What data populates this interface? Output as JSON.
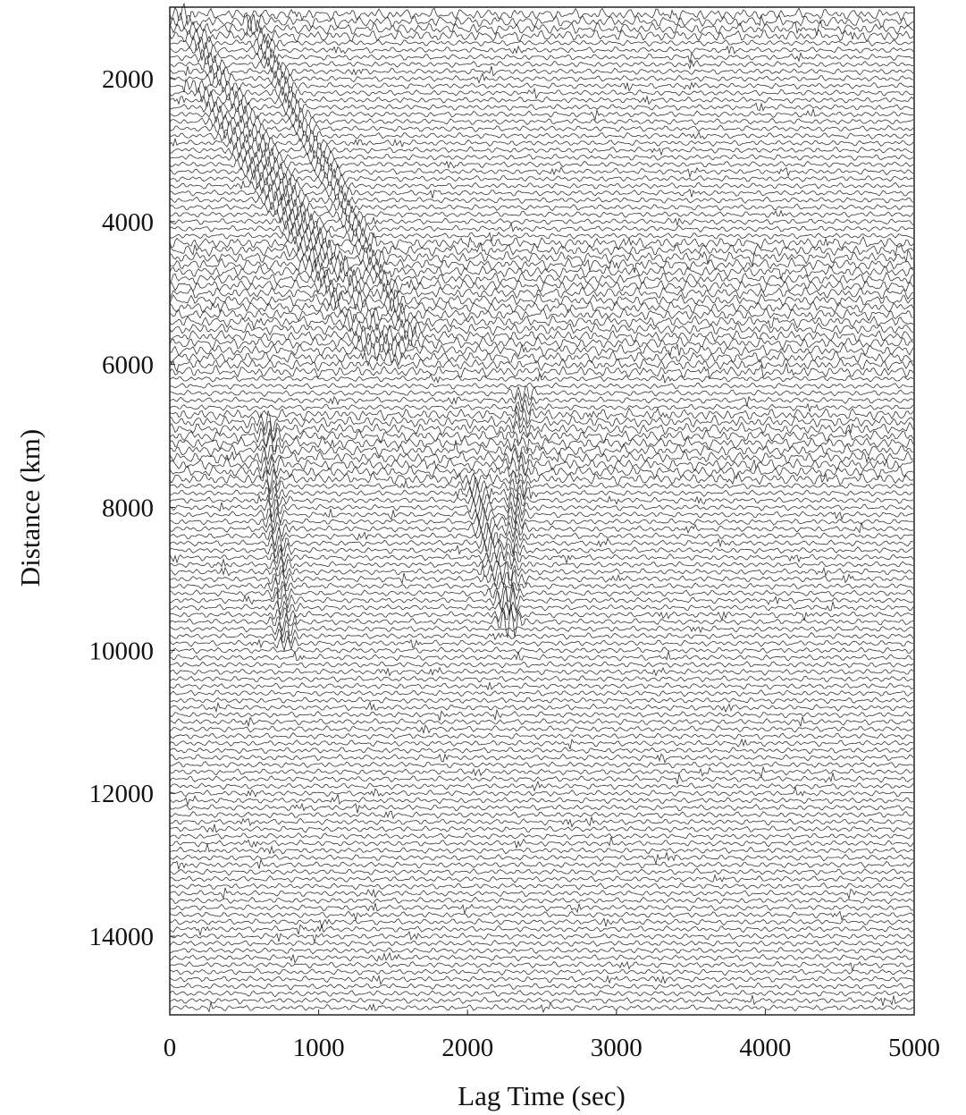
{
  "chart_data": {
    "type": "seismic-record-section",
    "xlabel": "Lag Time (sec)",
    "ylabel": "Distance (km)",
    "xlim": [
      0,
      5000
    ],
    "ylim": [
      1000,
      15100
    ],
    "xticks": [
      0,
      1000,
      2000,
      3000,
      4000,
      5000
    ],
    "yticks": [
      2000,
      4000,
      6000,
      8000,
      10000,
      12000,
      14000
    ],
    "trace_spacing_km": 100,
    "trace_color": "#333333",
    "wave_arrivals": [
      {
        "start_time": 50,
        "start_distance": 1000,
        "end_time": 1500,
        "end_distance": 5900
      },
      {
        "start_time": 550,
        "start_distance": 1200,
        "end_time": 1650,
        "end_distance": 5700
      },
      {
        "start_time": 200,
        "start_distance": 2100,
        "end_time": 1350,
        "end_distance": 5800
      },
      {
        "start_time": 2380,
        "start_distance": 6400,
        "end_time": 2280,
        "end_distance": 9600
      },
      {
        "start_time": 2030,
        "start_distance": 7600,
        "end_time": 2280,
        "end_distance": 9600
      },
      {
        "start_time": 650,
        "start_distance": 6800,
        "end_time": 780,
        "end_distance": 9900
      }
    ],
    "noisy_bands_km": [
      [
        1000,
        1400
      ],
      [
        4300,
        6100
      ],
      [
        6700,
        7600
      ]
    ]
  }
}
